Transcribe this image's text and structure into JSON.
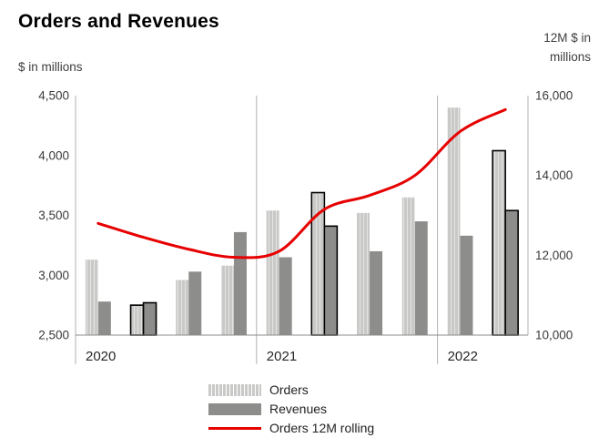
{
  "chart_data": {
    "type": "bar",
    "title": "Orders and Revenues",
    "left_axis": {
      "caption": "$ in millions",
      "ticks": [
        "2,500",
        "3,000",
        "3,500",
        "4,000",
        "4,500"
      ],
      "tick_values": [
        2500,
        3000,
        3500,
        4000,
        4500
      ],
      "range": [
        2500,
        4500
      ]
    },
    "right_axis": {
      "caption": "12M $ in millions",
      "ticks": [
        "10,000",
        "12,000",
        "14,000",
        "16,000"
      ],
      "tick_values": [
        10000,
        12000,
        14000,
        16000
      ],
      "range": [
        10000,
        16000
      ]
    },
    "x_groups": [
      {
        "label": "2020",
        "quarters": 4
      },
      {
        "label": "2021",
        "quarters": 4
      },
      {
        "label": "2022",
        "quarters": 2
      }
    ],
    "series": [
      {
        "name": "Orders",
        "type": "bar",
        "axis": "left",
        "color": "#c9c9c7",
        "values": [
          3130,
          2750,
          2960,
          3080,
          3540,
          3690,
          3520,
          3650,
          4400,
          4040
        ]
      },
      {
        "name": "Revenues",
        "type": "bar",
        "axis": "left",
        "color": "#8d8d8b",
        "values": [
          2780,
          2770,
          3030,
          3360,
          3150,
          3410,
          3200,
          3450,
          3330,
          3540
        ]
      },
      {
        "name": "Orders 12M rolling",
        "type": "line",
        "axis": "right",
        "color": "#e60000",
        "values": [
          12800,
          12450,
          12150,
          11950,
          12100,
          13150,
          13500,
          14000,
          15100,
          15650
        ]
      }
    ],
    "highlighted_quarters": [
      1,
      5,
      9
    ],
    "highlight_color": "#000000",
    "grid_color": "#b0b0b0",
    "axis_color": "#8c8c8c",
    "tick_text_color": "#3a3a3a",
    "year_text_color": "#262626",
    "legend_position": "bottom"
  }
}
